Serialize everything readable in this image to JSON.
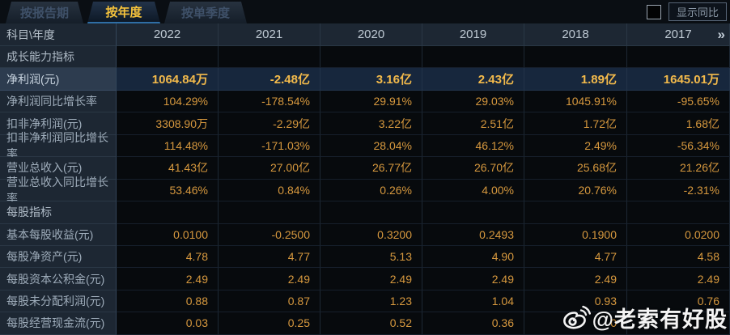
{
  "tabs": [
    {
      "label": "按报告期",
      "selected": false
    },
    {
      "label": "按年度",
      "selected": true
    },
    {
      "label": "按单季度",
      "selected": false
    }
  ],
  "controls": {
    "show_yoy_label": "显示同比",
    "checkbox_checked": false
  },
  "table": {
    "corner_label": "科目\\年度",
    "year_columns": [
      "2022",
      "2021",
      "2020",
      "2019",
      "2018",
      "2017"
    ],
    "more_icon": "»",
    "rows": [
      {
        "type": "section",
        "label": "成长能力指标",
        "values": [
          "",
          "",
          "",
          "",
          "",
          ""
        ]
      },
      {
        "type": "highlight",
        "label": "净利润(元)",
        "values": [
          "1064.84万",
          "-2.48亿",
          "3.16亿",
          "2.43亿",
          "1.89亿",
          "1645.01万"
        ]
      },
      {
        "type": "data",
        "label": "净利润同比增长率",
        "values": [
          "104.29%",
          "-178.54%",
          "29.91%",
          "29.03%",
          "1045.91%",
          "-95.65%"
        ]
      },
      {
        "type": "data",
        "label": "扣非净利润(元)",
        "values": [
          "3308.90万",
          "-2.29亿",
          "3.22亿",
          "2.51亿",
          "1.72亿",
          "1.68亿"
        ]
      },
      {
        "type": "data",
        "label": "扣非净利润同比增长率",
        "values": [
          "114.48%",
          "-171.03%",
          "28.04%",
          "46.12%",
          "2.49%",
          "-56.34%"
        ]
      },
      {
        "type": "data",
        "label": "营业总收入(元)",
        "values": [
          "41.43亿",
          "27.00亿",
          "26.77亿",
          "26.70亿",
          "25.68亿",
          "21.26亿"
        ]
      },
      {
        "type": "data",
        "label": "营业总收入同比增长率",
        "values": [
          "53.46%",
          "0.84%",
          "0.26%",
          "4.00%",
          "20.76%",
          "-2.31%"
        ]
      },
      {
        "type": "section",
        "label": "每股指标",
        "values": [
          "",
          "",
          "",
          "",
          "",
          ""
        ]
      },
      {
        "type": "data",
        "label": "基本每股收益(元)",
        "values": [
          "0.0100",
          "-0.2500",
          "0.3200",
          "0.2493",
          "0.1900",
          "0.0200"
        ]
      },
      {
        "type": "data",
        "label": "每股净资产(元)",
        "values": [
          "4.78",
          "4.77",
          "5.13",
          "4.90",
          "4.77",
          "4.58"
        ]
      },
      {
        "type": "data",
        "label": "每股资本公积金(元)",
        "values": [
          "2.49",
          "2.49",
          "2.49",
          "2.49",
          "2.49",
          "2.49"
        ]
      },
      {
        "type": "data",
        "label": "每股未分配利润(元)",
        "values": [
          "0.88",
          "0.87",
          "1.23",
          "1.04",
          "0.93",
          "0.76"
        ]
      },
      {
        "type": "data",
        "label": "每股经营现金流(元)",
        "values": [
          "0.03",
          "0.25",
          "0.52",
          "0.36",
          "0",
          ""
        ]
      }
    ]
  },
  "watermark": {
    "text": "@老索有好股",
    "icon": "weibo-icon"
  },
  "colors": {
    "accent_gold": "#f6c33c",
    "value_orange": "#d6983e",
    "highlight_value": "#f3ba4b",
    "panel_blue": "#1d2733",
    "highlight_row": "#17273d",
    "cell_black": "#070a0d"
  }
}
